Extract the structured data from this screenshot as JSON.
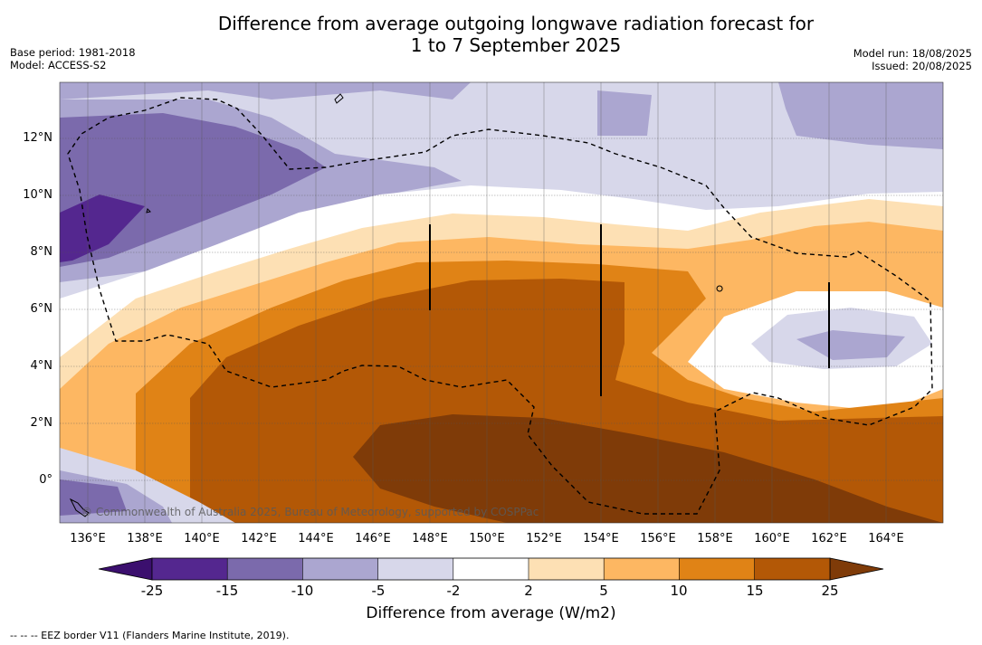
{
  "title_line1": "Difference from average outgoing longwave radiation forecast for",
  "title_line2": "1 to 7 September 2025",
  "base_period": "Base period: 1981-2018",
  "model": "Model: ACCESS-S2",
  "model_run": "Model run: 18/08/2025",
  "issued": "Issued: 20/08/2025",
  "lat_labels": [
    "12°N",
    "10°N",
    "8°N",
    "6°N",
    "4°N",
    "2°N",
    "0°"
  ],
  "lon_labels": [
    "136°E",
    "138°E",
    "140°E",
    "142°E",
    "144°E",
    "146°E",
    "148°E",
    "150°E",
    "152°E",
    "154°E",
    "156°E",
    "158°E",
    "160°E",
    "162°E",
    "164°E"
  ],
  "copyright": "© Commonwealth of Australia 2025, Bureau of Meteorology, supported by COSPPac",
  "colorbar": {
    "labels": [
      "-25",
      "-15",
      "-10",
      "-5",
      "-2",
      "2",
      "5",
      "10",
      "15",
      "25"
    ],
    "colors": [
      "#54278f",
      "#7b6aac",
      "#aba6d0",
      "#d7d7ea",
      "#ffffff",
      "#fde0b4",
      "#fdb762",
      "#e08316",
      "#b35806",
      "#7f3b08"
    ],
    "under_color": "#3b0f6e",
    "over_color": "#7f3b08",
    "title": "Difference from average (W/m2)"
  },
  "footnote": "--  --  -- EEZ border V11 (Flanders Marine Institute, 2019)."
}
